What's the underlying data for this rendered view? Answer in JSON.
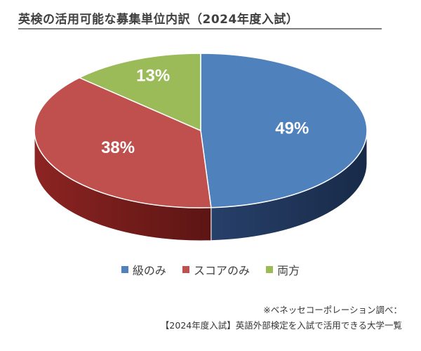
{
  "chart_data": {
    "type": "pie",
    "title": "英検の活用可能な募集単位内訳（2024年度入試）",
    "categories": [
      "級のみ",
      "スコアのみ",
      "両方"
    ],
    "values": [
      49,
      38,
      13
    ],
    "labels": [
      "49%",
      "38%",
      "13%"
    ],
    "colors": [
      "#4f81bd",
      "#c0504d",
      "#9bbb59"
    ],
    "side_colors": [
      "#1f3559",
      "#6e1c1b",
      "#4b6427"
    ],
    "legend_position": "bottom"
  },
  "source": {
    "line1": "※ベネッセコーポレーション調べ：",
    "line2": "【2024年度入試】英語外部検定を入試で活用できる大学一覧"
  }
}
